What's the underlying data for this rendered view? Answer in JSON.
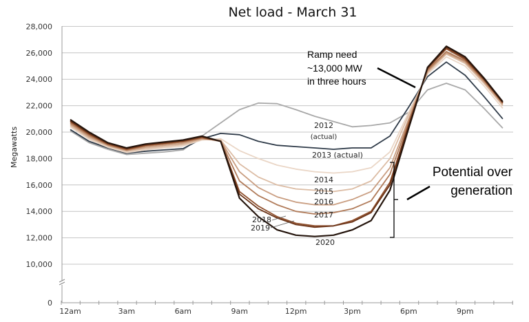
{
  "chart_data": {
    "type": "line",
    "title": "Net load - March 31",
    "xlabel": "",
    "ylabel": "Megawatts",
    "ylim": [
      0,
      28000
    ],
    "grid": true,
    "yticks": [
      "28,000",
      "26,000",
      "24,000",
      "22,000",
      "20,000",
      "18,000",
      "16,000",
      "14,000",
      "12,000",
      "10,000",
      "0"
    ],
    "ytick_values": [
      28000,
      26000,
      24000,
      22000,
      20000,
      18000,
      16000,
      14000,
      12000,
      10000,
      0
    ],
    "xticks": [
      "12am",
      "3am",
      "6am",
      "9am",
      "12pm",
      "3pm",
      "6pm",
      "9pm"
    ],
    "xtick_hours": [
      0,
      3,
      6,
      9,
      12,
      15,
      18,
      21
    ],
    "x": [
      0,
      1,
      2,
      3,
      4,
      5,
      6,
      7,
      8,
      9,
      10,
      11,
      12,
      13,
      14,
      15,
      16,
      17,
      18,
      19,
      20,
      21,
      22,
      23
    ],
    "series": [
      {
        "name": "2012 (actual)",
        "color": "#a8a8a8",
        "values": [
          20100,
          19200,
          18700,
          18300,
          18400,
          18500,
          18650,
          19700,
          20700,
          21700,
          22200,
          22150,
          21700,
          21200,
          20800,
          20400,
          20500,
          20700,
          21500,
          23200,
          23700,
          23200,
          21800,
          20300
        ]
      },
      {
        "name": "2013 (actual)",
        "color": "#2e3a48",
        "values": [
          20200,
          19300,
          18800,
          18400,
          18550,
          18650,
          18750,
          19500,
          19900,
          19800,
          19300,
          19000,
          18900,
          18800,
          18700,
          18800,
          18800,
          19700,
          21900,
          24200,
          25300,
          24300,
          22700,
          21000
        ]
      },
      {
        "name": "2014",
        "color": "#ead6c6",
        "values": [
          20400,
          19450,
          18850,
          18450,
          18650,
          18800,
          18950,
          19400,
          19500,
          18600,
          18000,
          17500,
          17200,
          17000,
          16900,
          17000,
          17300,
          18500,
          21500,
          24400,
          25700,
          25000,
          23500,
          21800
        ]
      },
      {
        "name": "2015",
        "color": "#dcbca4",
        "values": [
          20500,
          19550,
          18950,
          18550,
          18750,
          18900,
          19050,
          19450,
          19400,
          17600,
          16600,
          16000,
          15700,
          15600,
          15500,
          15700,
          16300,
          18000,
          21300,
          24500,
          25900,
          25200,
          23700,
          22000
        ]
      },
      {
        "name": "2016",
        "color": "#c99d80",
        "values": [
          20600,
          19650,
          19000,
          18600,
          18850,
          19000,
          19150,
          19500,
          19350,
          17000,
          15800,
          15100,
          14700,
          14500,
          14500,
          14900,
          15500,
          17300,
          21000,
          24600,
          26000,
          25300,
          23800,
          22100
        ]
      },
      {
        "name": "2017",
        "color": "#b07a58",
        "values": [
          20700,
          19750,
          19050,
          18650,
          18950,
          19100,
          19250,
          19550,
          19300,
          16300,
          15200,
          14500,
          14000,
          13800,
          13900,
          14200,
          14800,
          16800,
          20800,
          24700,
          26100,
          25400,
          23900,
          22200
        ]
      },
      {
        "name": "2018",
        "color": "#8f4f2c",
        "values": [
          20800,
          19850,
          19100,
          18700,
          19000,
          19150,
          19300,
          19600,
          19300,
          15500,
          14400,
          13600,
          13100,
          12900,
          12900,
          13300,
          14000,
          16200,
          20600,
          24800,
          26300,
          25500,
          24000,
          22200
        ]
      },
      {
        "name": "2019",
        "color": "#6a3216",
        "values": [
          20850,
          19900,
          19150,
          18750,
          19050,
          19200,
          19350,
          19650,
          19300,
          15300,
          14200,
          13500,
          13000,
          12800,
          12900,
          13200,
          13900,
          16000,
          20500,
          24850,
          26400,
          25600,
          24000,
          22250
        ]
      },
      {
        "name": "2020",
        "color": "#24140c",
        "values": [
          20950,
          20000,
          19200,
          18800,
          19100,
          19250,
          19400,
          19700,
          19300,
          15000,
          13600,
          12600,
          12200,
          12100,
          12200,
          12600,
          13300,
          15600,
          20300,
          24900,
          26500,
          25700,
          24100,
          22300
        ]
      }
    ],
    "series_labels": [
      {
        "text": "2012",
        "sub": "(actual)"
      },
      {
        "text": "2013 (actual)"
      },
      {
        "text": "2014"
      },
      {
        "text": "2015"
      },
      {
        "text": "2016"
      },
      {
        "text": "2017"
      },
      {
        "text": "2018"
      },
      {
        "text": "2019"
      },
      {
        "text": "2020"
      }
    ],
    "annotations": {
      "ramp": [
        "Ramp need",
        "~13,000 MW",
        "in three hours"
      ],
      "overgen": [
        "Potential over",
        "generation"
      ]
    }
  }
}
